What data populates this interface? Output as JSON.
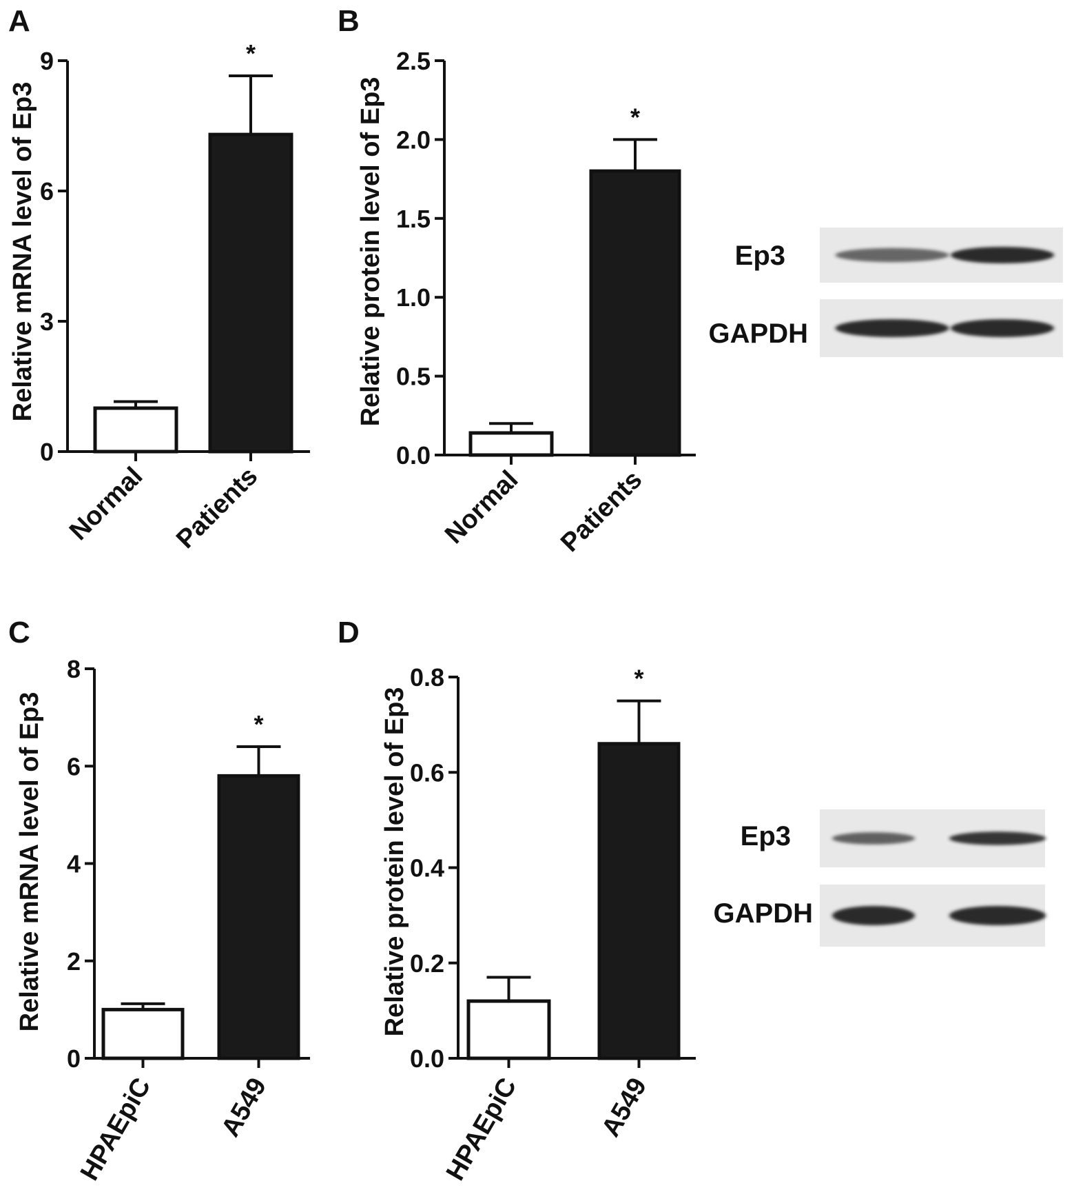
{
  "colors": {
    "axis": "#111111",
    "bar_control": "#ffffff",
    "bar_case": "#1a1a1a",
    "blot_bg": "#e8e8e8",
    "band": "#2a2a2a"
  },
  "chart_data": [
    {
      "panel": "A",
      "type": "bar",
      "title": "",
      "xlabel": "",
      "ylabel": "Relative mRNA level of Ep3",
      "categories": [
        "Normal",
        "Patients"
      ],
      "values": [
        1.0,
        7.3
      ],
      "errors": [
        0.15,
        1.35
      ],
      "ylim": [
        0,
        9
      ],
      "yticks": [
        0,
        3,
        6,
        9
      ],
      "significance": [
        "",
        "*"
      ],
      "tick_rotation": -45,
      "grid": false,
      "legend": "none"
    },
    {
      "panel": "B",
      "type": "bar",
      "title": "",
      "xlabel": "",
      "ylabel": "Relative protein level of Ep3",
      "categories": [
        "Normal",
        "Patients"
      ],
      "values": [
        0.14,
        1.8
      ],
      "errors": [
        0.06,
        0.2
      ],
      "ylim": [
        0,
        2.5
      ],
      "yticks": [
        "0.0",
        "0.5",
        "1.0",
        "1.5",
        "2.0",
        "2.5"
      ],
      "significance": [
        "",
        "*"
      ],
      "tick_rotation": -45,
      "grid": false,
      "legend": "none"
    },
    {
      "panel": "C",
      "type": "bar",
      "title": "",
      "xlabel": "",
      "ylabel": "Relative mRNA level of Ep3",
      "categories": [
        "HPAEpiC",
        "A549"
      ],
      "values": [
        1.0,
        5.8
      ],
      "errors": [
        0.12,
        0.6
      ],
      "ylim": [
        0,
        8
      ],
      "yticks": [
        0,
        2,
        4,
        6,
        8
      ],
      "significance": [
        "",
        "*"
      ],
      "tick_rotation": -60,
      "grid": false,
      "legend": "none"
    },
    {
      "panel": "D",
      "type": "bar",
      "title": "",
      "xlabel": "",
      "ylabel": "Relative protein level of Ep3",
      "categories": [
        "HPAEpiC",
        "A549"
      ],
      "values": [
        0.12,
        0.66
      ],
      "errors": [
        0.05,
        0.09
      ],
      "ylim": [
        0,
        0.8
      ],
      "yticks": [
        "0.0",
        "0.2",
        "0.4",
        "0.6",
        "0.8"
      ],
      "significance": [
        "",
        "*"
      ],
      "tick_rotation": -60,
      "grid": false,
      "legend": "none"
    }
  ],
  "blots": [
    {
      "panel": "B",
      "rows": [
        {
          "label": "Ep3",
          "intensities": [
            0.5,
            1.0
          ]
        },
        {
          "label": "GAPDH",
          "intensities": [
            1.0,
            1.0
          ]
        }
      ]
    },
    {
      "panel": "D",
      "rows": [
        {
          "label": "Ep3",
          "intensities": [
            0.55,
            0.9
          ]
        },
        {
          "label": "GAPDH",
          "intensities": [
            1.0,
            1.0
          ]
        }
      ]
    }
  ]
}
